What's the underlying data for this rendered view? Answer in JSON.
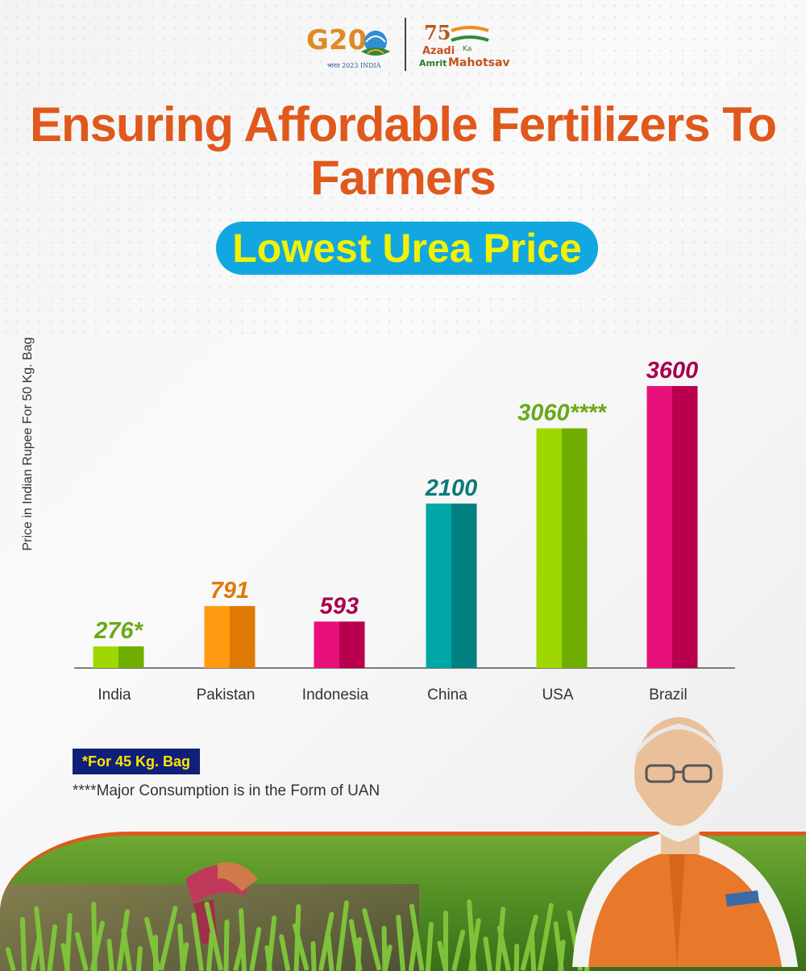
{
  "header": {
    "g20_logo_text": "G20",
    "g20_logo_subtext": "भारत 2023 INDIA",
    "azadi_logo": {
      "number": "75",
      "azadi": "Azadi",
      "ka": "Ka",
      "amrit": "Amrit",
      "mahotsav": "Mahotsav"
    }
  },
  "title": "Ensuring Affordable Fertilizers To Farmers",
  "subtitle": "Lowest Urea Price",
  "chart_data": {
    "type": "bar",
    "ylabel": "Price in Indian Rupee For 50 Kg. Bag",
    "xlabel": "",
    "categories": [
      "India",
      "Pakistan",
      "Indonesia",
      "China",
      "USA",
      "Brazil"
    ],
    "values": [
      276,
      791,
      593,
      2100,
      3060,
      3600
    ],
    "value_labels": [
      "276*",
      "791",
      "593",
      "2100",
      "3060****",
      "3600"
    ],
    "bar_colors": [
      {
        "light": "#9ed800",
        "dark": "#6fae00"
      },
      {
        "light": "#ff9a10",
        "dark": "#e07a05"
      },
      {
        "light": "#e8107a",
        "dark": "#b8004e"
      },
      {
        "light": "#00a7a7",
        "dark": "#008080"
      },
      {
        "light": "#9ed800",
        "dark": "#6fae00"
      },
      {
        "light": "#e8107a",
        "dark": "#b8004e"
      }
    ],
    "label_colors": [
      "#6aa818",
      "#e07a05",
      "#a8004a",
      "#0b7a7a",
      "#6aa818",
      "#a8004a"
    ],
    "grid": false,
    "legend": "none"
  },
  "notes": {
    "badge": "*For 45 Kg. Bag",
    "footnote": "****Major Consumption is in the Form of UAN"
  },
  "colors": {
    "title": "#e0581c",
    "pill_bg": "#12a7e0",
    "pill_text": "#f2f200",
    "badge_bg": "#0f1f7a",
    "badge_text": "#ffe400"
  }
}
